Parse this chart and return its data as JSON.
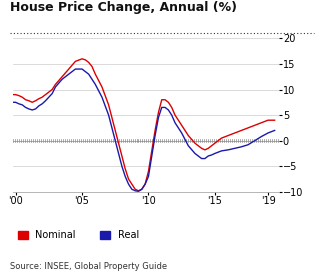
{
  "title": "House Price Change, Annual (%)",
  "source": "Source: INSEE, Global Property Guide",
  "legend": [
    "Nominal",
    "Real"
  ],
  "xlim": [
    1999.8,
    2019.8
  ],
  "ylim": [
    -10,
    20
  ],
  "yticks": [
    -10,
    -5,
    0,
    5,
    10,
    15,
    20
  ],
  "xticks": [
    2000,
    2005,
    2010,
    2015,
    2019
  ],
  "xticklabels": [
    "'00",
    "'05",
    "'10",
    "'15",
    "'19"
  ],
  "nominal_years": [
    1999.8,
    2000.0,
    2000.25,
    2000.5,
    2000.75,
    2001.0,
    2001.25,
    2001.5,
    2001.75,
    2002.0,
    2002.25,
    2002.5,
    2002.75,
    2003.0,
    2003.5,
    2004.0,
    2004.5,
    2005.0,
    2005.25,
    2005.5,
    2005.75,
    2006.0,
    2006.5,
    2007.0,
    2007.25,
    2007.5,
    2007.75,
    2008.0,
    2008.25,
    2008.5,
    2008.75,
    2009.0,
    2009.25,
    2009.5,
    2009.75,
    2010.0,
    2010.25,
    2010.5,
    2010.75,
    2011.0,
    2011.25,
    2011.5,
    2011.75,
    2012.0,
    2012.5,
    2013.0,
    2013.5,
    2014.0,
    2014.25,
    2014.5,
    2014.75,
    2015.0,
    2015.5,
    2016.0,
    2016.5,
    2017.0,
    2017.5,
    2018.0,
    2018.5,
    2019.0,
    2019.5
  ],
  "nominal_values": [
    9.0,
    9.0,
    8.8,
    8.5,
    8.0,
    7.8,
    7.5,
    7.8,
    8.2,
    8.5,
    9.0,
    9.5,
    10.0,
    11.0,
    12.5,
    14.0,
    15.5,
    16.0,
    15.8,
    15.3,
    14.5,
    13.0,
    10.5,
    7.0,
    4.5,
    2.0,
    -0.5,
    -3.0,
    -5.5,
    -7.5,
    -8.5,
    -9.5,
    -9.8,
    -9.5,
    -8.5,
    -6.0,
    -2.0,
    2.0,
    5.5,
    8.0,
    8.0,
    7.5,
    6.5,
    5.0,
    3.0,
    1.0,
    -0.5,
    -1.5,
    -1.8,
    -1.5,
    -1.0,
    -0.5,
    0.5,
    1.0,
    1.5,
    2.0,
    2.5,
    3.0,
    3.5,
    4.0,
    4.0
  ],
  "real_years": [
    1999.8,
    2000.0,
    2000.25,
    2000.5,
    2000.75,
    2001.0,
    2001.25,
    2001.5,
    2001.75,
    2002.0,
    2002.25,
    2002.5,
    2002.75,
    2003.0,
    2003.5,
    2004.0,
    2004.5,
    2005.0,
    2005.25,
    2005.5,
    2005.75,
    2006.0,
    2006.5,
    2007.0,
    2007.25,
    2007.5,
    2007.75,
    2008.0,
    2008.25,
    2008.5,
    2008.75,
    2009.0,
    2009.25,
    2009.5,
    2009.75,
    2010.0,
    2010.25,
    2010.5,
    2010.75,
    2011.0,
    2011.25,
    2011.5,
    2011.75,
    2012.0,
    2012.5,
    2013.0,
    2013.5,
    2014.0,
    2014.25,
    2014.5,
    2014.75,
    2015.0,
    2015.5,
    2016.0,
    2016.5,
    2017.0,
    2017.5,
    2018.0,
    2018.5,
    2019.0,
    2019.5
  ],
  "real_values": [
    7.5,
    7.5,
    7.2,
    7.0,
    6.5,
    6.2,
    6.0,
    6.2,
    6.8,
    7.2,
    7.8,
    8.5,
    9.2,
    10.5,
    12.0,
    13.0,
    14.0,
    14.0,
    13.5,
    13.0,
    12.0,
    11.0,
    8.5,
    5.0,
    2.5,
    0.0,
    -2.5,
    -5.0,
    -7.0,
    -8.5,
    -9.5,
    -9.8,
    -9.9,
    -9.5,
    -8.5,
    -7.0,
    -3.0,
    1.0,
    4.5,
    6.5,
    6.5,
    6.0,
    5.0,
    3.5,
    1.5,
    -1.0,
    -2.5,
    -3.5,
    -3.5,
    -3.0,
    -2.8,
    -2.5,
    -2.0,
    -1.8,
    -1.5,
    -1.2,
    -0.8,
    0.0,
    0.8,
    1.5,
    2.0
  ],
  "nominal_color": "#dd0000",
  "real_color": "#1a1aaa",
  "bg_color": "#ffffff",
  "grid_color": "#cccccc",
  "title_fontsize": 9,
  "tick_fontsize": 7,
  "source_fontsize": 6
}
